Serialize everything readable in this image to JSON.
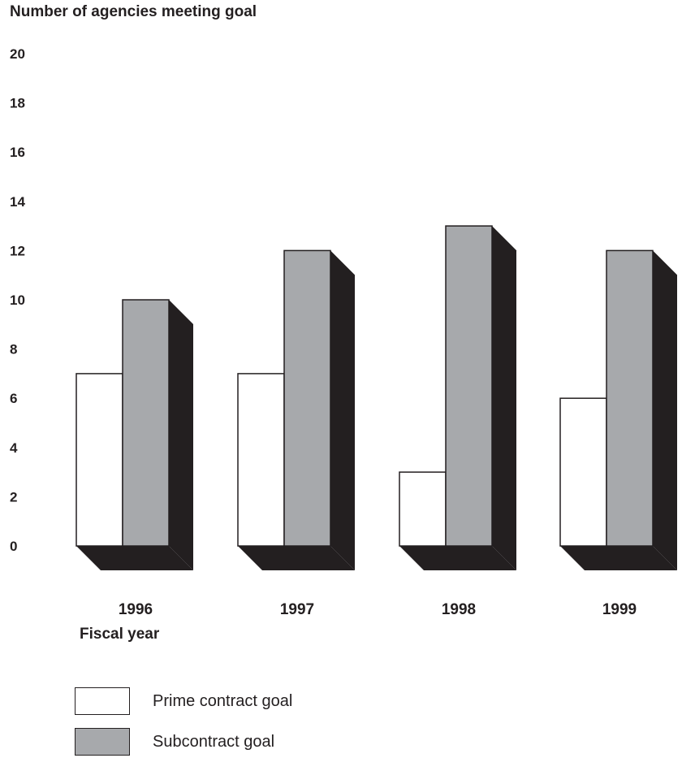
{
  "chart_data": {
    "type": "bar",
    "title": "Number of agencies meeting goal",
    "xlabel": "Fiscal year",
    "ylabel": "",
    "categories": [
      "1996",
      "1997",
      "1998",
      "1999"
    ],
    "series": [
      {
        "name": "Prime contract goal",
        "values": [
          7,
          7,
          3,
          6
        ],
        "color": "#ffffff"
      },
      {
        "name": "Subcontract goal",
        "values": [
          10,
          12,
          13,
          12
        ],
        "color": "#a7a9ac"
      }
    ],
    "ylim": [
      0,
      20
    ],
    "yticks": [
      0,
      2,
      4,
      6,
      8,
      10,
      12,
      14,
      16,
      18,
      20
    ],
    "grid": false,
    "legend_position": "bottom-left",
    "style": "3d",
    "colors": {
      "ink": "#231f20",
      "shadow": "#231f20"
    }
  }
}
